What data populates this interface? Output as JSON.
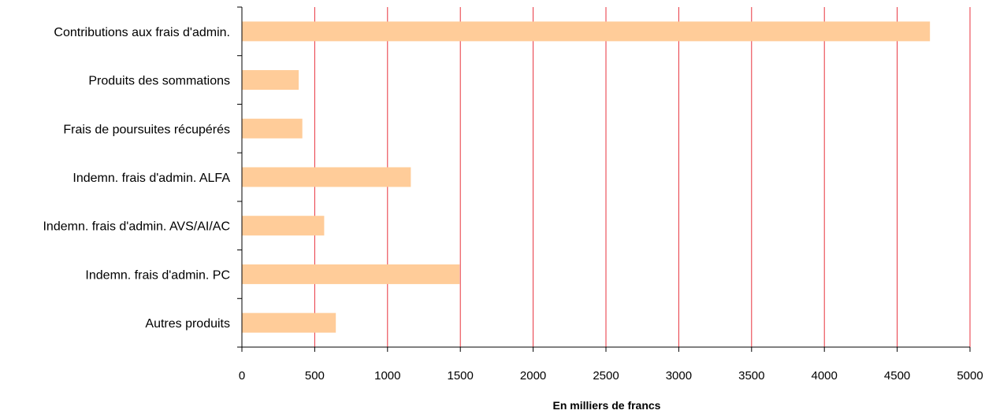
{
  "chart_data": {
    "type": "bar",
    "orientation": "horizontal",
    "categories": [
      "Contributions aux frais d'admin.",
      "Produits des sommations",
      "Frais de poursuites récupérés",
      "Indemn. frais d'admin. ALFA",
      "Indemn. frais d'admin. AVS/AI/AC",
      "Indemn. frais d'admin. PC",
      "Autres produits"
    ],
    "values": [
      4725,
      390,
      415,
      1160,
      565,
      1495,
      645
    ],
    "xlabel": "En milliers de francs",
    "ylabel": "",
    "xlim": [
      0,
      5000
    ],
    "xticks": [
      "0",
      "500",
      "1000",
      "1500",
      "2000",
      "2500",
      "3000",
      "3500",
      "4000",
      "4500",
      "5000"
    ],
    "grid": "vertical",
    "colors": {
      "bar": "#ffcc99",
      "grid": "#e8323c",
      "axis": "#000000"
    }
  }
}
